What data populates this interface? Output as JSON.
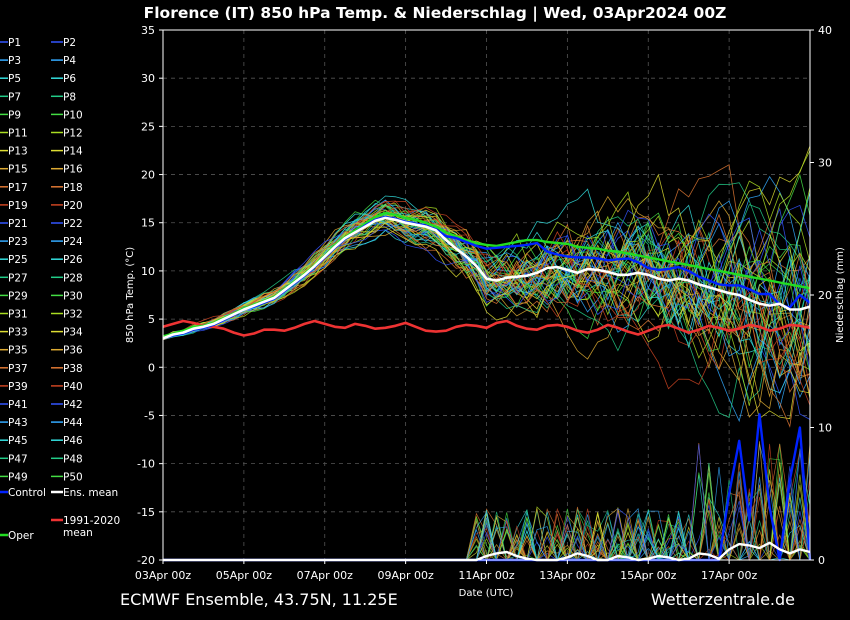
{
  "chart_data": {
    "type": "line",
    "title": "Florence  (IT)  850 hPa Temp. & Niederschlag | Wed, 03Apr2024 00Z",
    "ylabel": "850 hPa Temp. (°C)",
    "y2label": "Niederschlag (mm)",
    "xlabel": "Date (UTC)",
    "ylim": [
      -20,
      35
    ],
    "y2lim": [
      0,
      40
    ],
    "yticks": [
      -20,
      -15,
      -10,
      -5,
      0,
      5,
      10,
      15,
      20,
      25,
      30,
      35
    ],
    "y2ticks": [
      0,
      10,
      20,
      30,
      40
    ],
    "xticks": [
      "03Apr 00z",
      "05Apr 00z",
      "07Apr 00z",
      "09Apr 00z",
      "11Apr 00z",
      "13Apr 00z",
      "15Apr 00z",
      "17Apr 00z"
    ],
    "x_step_hours": 6,
    "grid": true,
    "footer_left": "ECMWF Ensemble, 43.75N, 11.25E",
    "footer_right": "Wetterzentrale.de",
    "colors": {
      "members": [
        "#3355ff",
        "#33aaff",
        "#33dddd",
        "#22cc88",
        "#44dd44",
        "#aadd22",
        "#dddd33",
        "#ddaa33",
        "#dd7733",
        "#cc4422"
      ],
      "control": "#0022ff",
      "mean": "#ffffff",
      "oper": "#22dd22",
      "clim": "#ee3333"
    },
    "legend_members": [
      "P1",
      "P2",
      "P3",
      "P4",
      "P5",
      "P6",
      "P7",
      "P8",
      "P9",
      "P10",
      "P11",
      "P12",
      "P13",
      "P14",
      "P15",
      "P16",
      "P17",
      "P18",
      "P19",
      "P20",
      "P21",
      "P22",
      "P23",
      "P24",
      "P25",
      "P26",
      "P27",
      "P28",
      "P29",
      "P30",
      "P31",
      "P32",
      "P33",
      "P34",
      "P35",
      "P36",
      "P37",
      "P38",
      "P39",
      "P40",
      "P41",
      "P42",
      "P43",
      "P44",
      "P45",
      "P46",
      "P47",
      "P48",
      "P49",
      "P50"
    ],
    "legend_special": [
      {
        "label": "Control",
        "color": "#0022ff"
      },
      {
        "label": "Ens. mean",
        "color": "#ffffff"
      },
      {
        "label": "Oper",
        "color": "#22dd22"
      },
      {
        "label": "1991-2020\nmean",
        "color": "#ee3333"
      }
    ],
    "series": [
      {
        "name": "Ens. mean",
        "axis": "temp",
        "values": [
          3,
          3.4,
          3.6,
          4,
          4.2,
          4.5,
          5,
          5.5,
          6,
          6.4,
          6.8,
          7.2,
          8,
          8.8,
          9.6,
          10.5,
          11.5,
          12.5,
          13.4,
          14,
          14.6,
          15.2,
          15.5,
          15.3,
          15,
          14.8,
          14.6,
          14.2,
          13.2,
          12.3,
          11.5,
          10.5,
          9.2,
          9,
          9.3,
          9.4,
          9.5,
          9.8,
          10.3,
          10.4,
          10.1,
          9.8,
          10.2,
          10.1,
          9.9,
          9.6,
          9.6,
          9.8,
          9.6,
          9.2,
          9,
          9.2,
          9,
          8.6,
          8.3,
          8,
          7.7,
          7.5,
          7,
          6.6,
          6.4,
          6.6,
          6,
          6,
          6.3
        ]
      },
      {
        "name": "Control",
        "axis": "temp",
        "values": [
          3,
          3.3,
          3.5,
          3.9,
          4.1,
          4.4,
          4.9,
          5.4,
          6,
          6.3,
          6.7,
          7.1,
          7.9,
          8.7,
          9.5,
          10.4,
          11.4,
          12.4,
          13.3,
          14,
          14.7,
          15.3,
          15.6,
          15.4,
          15.1,
          14.9,
          14.7,
          14.3,
          13.6,
          13.4,
          13,
          12.6,
          12.3,
          12.4,
          12.5,
          12.6,
          12.7,
          12.9,
          12,
          11.7,
          11.5,
          11.4,
          11.4,
          11.3,
          11.1,
          11.2,
          11.3,
          10.9,
          10.3,
          10.1,
          10.2,
          10.4,
          10,
          9.4,
          9,
          8.6,
          8.5,
          8.5,
          8.1,
          7.6,
          7.6,
          6.5,
          6.2,
          7.5,
          6.7
        ]
      },
      {
        "name": "Oper",
        "axis": "temp",
        "values": [
          3.2,
          3.5,
          3.8,
          4.2,
          4.3,
          4.6,
          5.1,
          5.6,
          6.1,
          6.5,
          6.9,
          7.3,
          8.1,
          8.9,
          9.7,
          10.6,
          11.6,
          12.6,
          13.5,
          14.2,
          14.9,
          15.6,
          16,
          15.8,
          15.5,
          15.3,
          15,
          14.6,
          14,
          13.6,
          13.2,
          12.9,
          12.7,
          12.6,
          12.8,
          13,
          13.2,
          13.2,
          13,
          12.9,
          12.8,
          12.5,
          12.4,
          12.3,
          12.1,
          12,
          11.8,
          11.6,
          11.4,
          11.2,
          11,
          10.8,
          10.6,
          10.4,
          10.2,
          10,
          9.8,
          9.6,
          9.4,
          9.2,
          9,
          8.8,
          8.6,
          8.4,
          8.2
        ]
      },
      {
        "name": "1991-2020 mean",
        "axis": "temp",
        "values": [
          4.2,
          4.5,
          4.8,
          4.6,
          4.3,
          4.2,
          4,
          3.6,
          3.3,
          3.5,
          3.9,
          3.9,
          3.8,
          4.1,
          4.5,
          4.8,
          4.5,
          4.2,
          4.1,
          4.5,
          4.3,
          4,
          4.1,
          4.3,
          4.6,
          4.2,
          3.8,
          3.7,
          3.8,
          4.2,
          4.4,
          4.3,
          4.1,
          4.6,
          4.8,
          4.3,
          4,
          3.9,
          4.3,
          4.4,
          4.2,
          3.8,
          3.6,
          3.9,
          4.4,
          4.1,
          3.7,
          3.4,
          3.8,
          4.2,
          4.4,
          4,
          3.6,
          3.9,
          4.3,
          4.1,
          3.8,
          4,
          4.4,
          4.2,
          3.8,
          4,
          4.4,
          4.3,
          4.1
        ]
      },
      {
        "name": "Ens. mean precip",
        "axis": "precip",
        "values": [
          0,
          0,
          0,
          0,
          0,
          0,
          0,
          0,
          0,
          0,
          0,
          0,
          0,
          0,
          0,
          0,
          0,
          0,
          0,
          0,
          0,
          0,
          0,
          0,
          0,
          0,
          0,
          0,
          0,
          0,
          0,
          0,
          0.3,
          0.5,
          0.6,
          0.3,
          0.1,
          0,
          0,
          0,
          0.2,
          0.5,
          0.3,
          0,
          0,
          0.3,
          0.2,
          0,
          0.1,
          0.3,
          0.2,
          0,
          0.1,
          0.5,
          0.4,
          0.1,
          0.8,
          1.2,
          1.1,
          0.9,
          1.3,
          0.8,
          0.5,
          0.8,
          0.6
        ]
      },
      {
        "name": "Control precip",
        "axis": "precip",
        "values": [
          0,
          0,
          0,
          0,
          0,
          0,
          0,
          0,
          0,
          0,
          0,
          0,
          0,
          0,
          0,
          0,
          0,
          0,
          0,
          0,
          0,
          0,
          0,
          0,
          0,
          0,
          0,
          0,
          0,
          0,
          0,
          0,
          0,
          0,
          0,
          0,
          0,
          0,
          0,
          0,
          0,
          0,
          0,
          0,
          0,
          0,
          0,
          0,
          0,
          0,
          0,
          0,
          0,
          0,
          0,
          0,
          5,
          9,
          3,
          11,
          4,
          0,
          6,
          10,
          0
        ]
      }
    ]
  }
}
